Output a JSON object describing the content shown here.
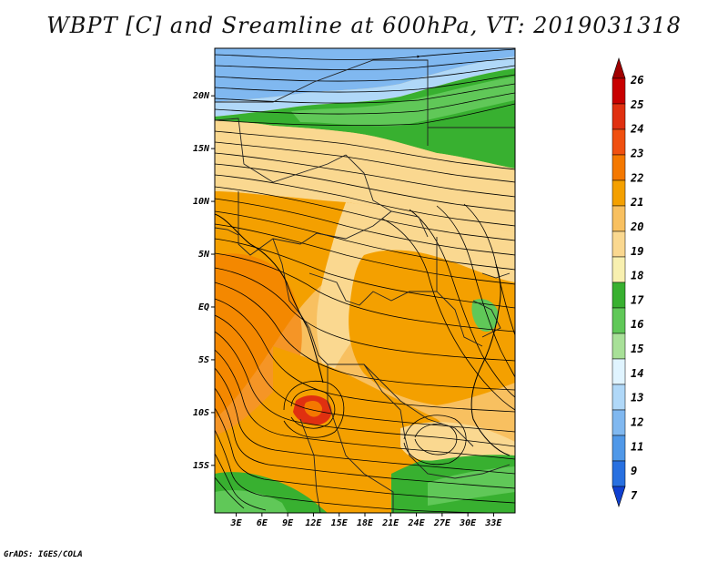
{
  "title": "WBPT [C] and Sreamline at 600hPa, VT: 2019031318",
  "credit": "GrADS: IGES/COLA",
  "map": {
    "lon_labels": [
      "3E",
      "6E",
      "9E",
      "12E",
      "15E",
      "18E",
      "21E",
      "24E",
      "27E",
      "30E",
      "33E"
    ],
    "lon_values": [
      3,
      6,
      9,
      12,
      15,
      18,
      21,
      24,
      27,
      30,
      33
    ],
    "lat_labels": [
      "20N",
      "15N",
      "10N",
      "5N",
      "EQ",
      "5S",
      "10S",
      "15S"
    ],
    "lat_values": [
      20,
      15,
      10,
      5,
      0,
      -5,
      -10,
      -15
    ],
    "lon_range": [
      0.5,
      35.5
    ],
    "lat_range": [
      -19.5,
      24.5
    ]
  },
  "colorbar": {
    "labels": [
      "26",
      "25",
      "24",
      "23",
      "22",
      "21",
      "20",
      "19",
      "18",
      "17",
      "16",
      "15",
      "14",
      "13",
      "12",
      "11",
      "9",
      "7"
    ],
    "colors": [
      "#a00000",
      "#c80000",
      "#e03010",
      "#f05010",
      "#f47800",
      "#f4a000",
      "#f8c060",
      "#fad890",
      "#f8f0b0",
      "#38b030",
      "#60c858",
      "#a8e098",
      "#e0f4ff",
      "#b0d8f8",
      "#80b8f0",
      "#5098e8",
      "#2870e0",
      "#1050d8"
    ],
    "top_color": "#a00000",
    "bottom_color": "#1040d0"
  },
  "colors": {
    "yellow": "#fad890",
    "orange": "#f4a000",
    "light_orange": "#f8c060",
    "deep_orange": "#f47800",
    "red": "#e03010",
    "green": "#38b030",
    "light_green": "#60c858",
    "pale_green": "#a8e098",
    "light_blue": "#b0d8f8",
    "blue": "#80b8f0"
  }
}
